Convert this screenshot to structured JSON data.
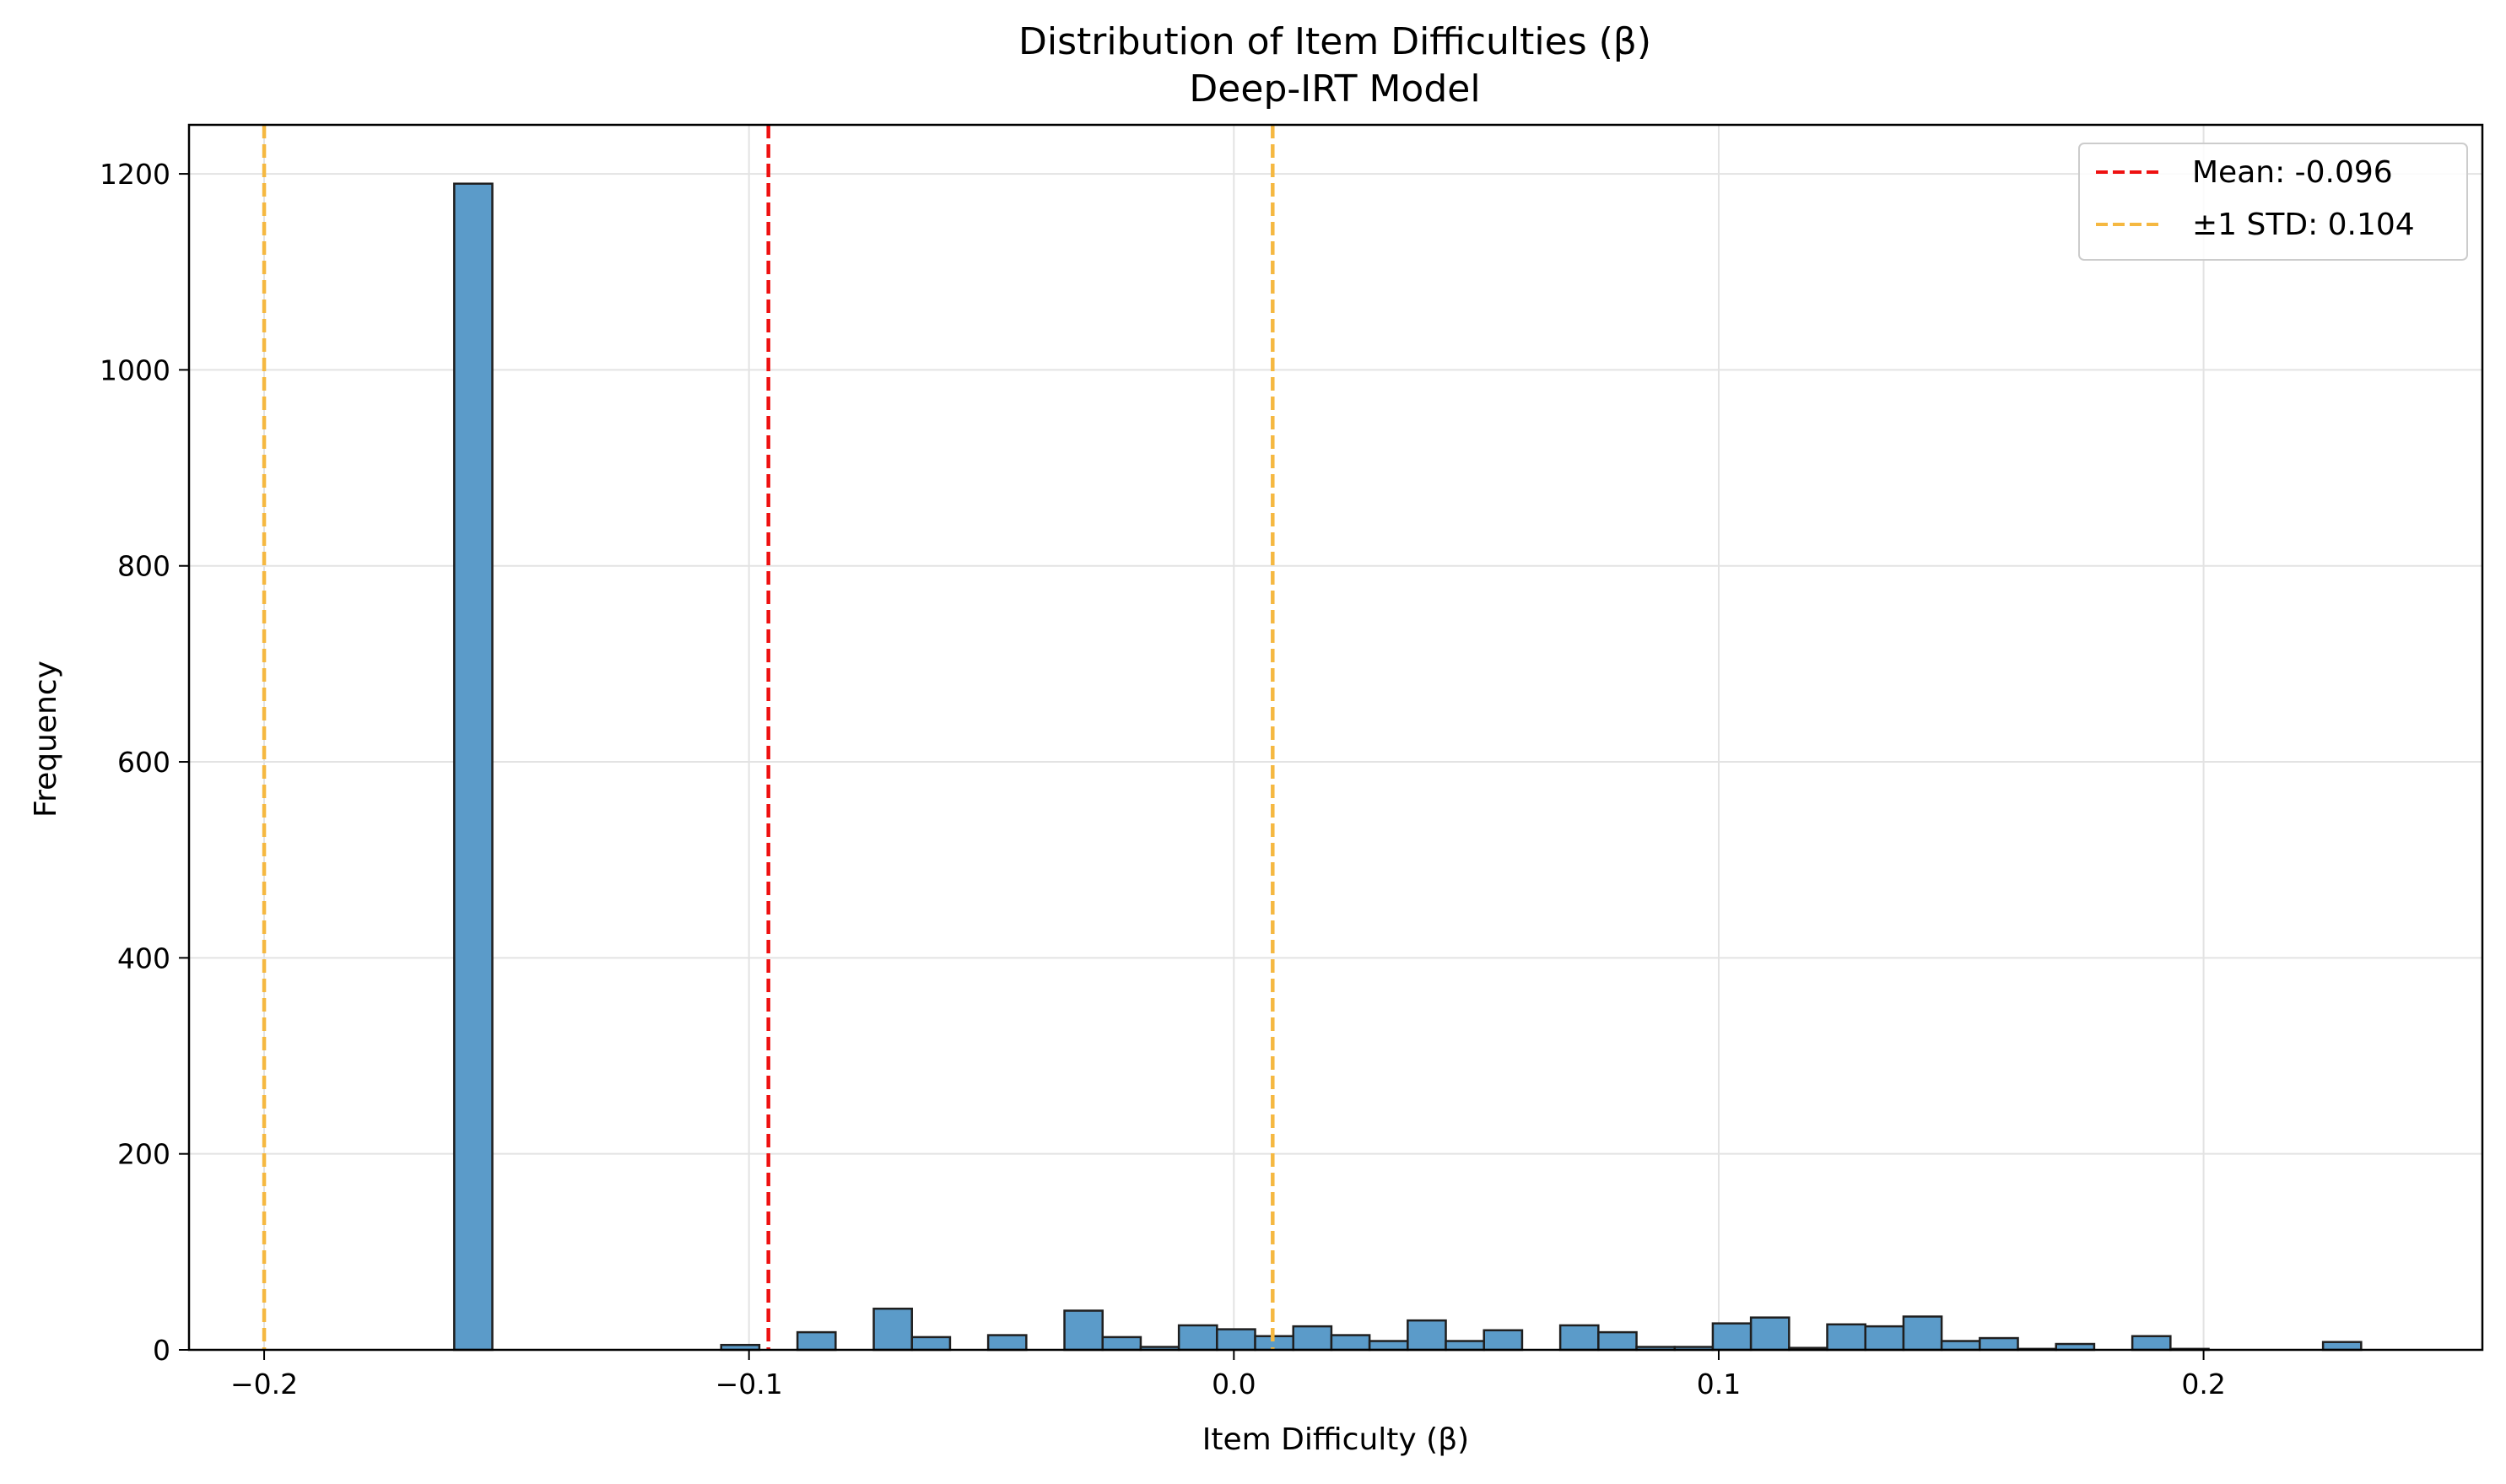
{
  "chart_data": {
    "type": "histogram",
    "title": "Distribution of Item Difficulties (β)",
    "subtitle": "Deep-IRT Model",
    "xlabel": "Item Difficulty (β)",
    "ylabel": "Frequency",
    "xlim": [
      -0.2155,
      0.2575
    ],
    "ylim": [
      0,
      1250
    ],
    "x_ticks": [
      -0.2,
      -0.1,
      0.0,
      0.1,
      0.2
    ],
    "x_tick_labels": [
      "−0.2",
      "−0.1",
      "0.0",
      "0.1",
      "0.2"
    ],
    "y_ticks": [
      0,
      200,
      400,
      600,
      800,
      1000,
      1200
    ],
    "y_tick_labels": [
      "0",
      "200",
      "400",
      "600",
      "800",
      "1000",
      "1200"
    ],
    "grid": true,
    "bar_color": "#5b9bc9",
    "bar_edge_color": "#1f1f1f",
    "bin_start": -0.1608,
    "bin_width": 0.007866,
    "counts": [
      1190,
      0,
      0,
      0,
      0,
      0,
      0,
      5,
      0,
      18,
      0,
      42,
      13,
      0,
      15,
      0,
      40,
      13,
      3,
      25,
      21,
      14,
      24,
      15,
      9,
      30,
      9,
      20,
      0,
      25,
      18,
      3,
      3,
      27,
      33,
      2,
      26,
      24,
      34,
      9,
      12,
      1,
      6,
      0,
      14,
      1,
      0,
      0,
      0,
      8
    ],
    "reference_lines": [
      {
        "name": "mean",
        "value": -0.096,
        "color": "#ee1111",
        "label": "Mean: -0.096"
      },
      {
        "name": "std-lower",
        "value": -0.2,
        "color": "#f5b841",
        "label": "±1 STD: 0.104"
      },
      {
        "name": "std-upper",
        "value": 0.008,
        "color": "#f5b841",
        "label": "±1 STD: 0.104"
      }
    ],
    "legend": {
      "position": "top-right",
      "entries": [
        {
          "label": "Mean: -0.096",
          "color": "#ee1111"
        },
        {
          "label": "±1 STD: 0.104",
          "color": "#f5b841"
        }
      ]
    }
  }
}
